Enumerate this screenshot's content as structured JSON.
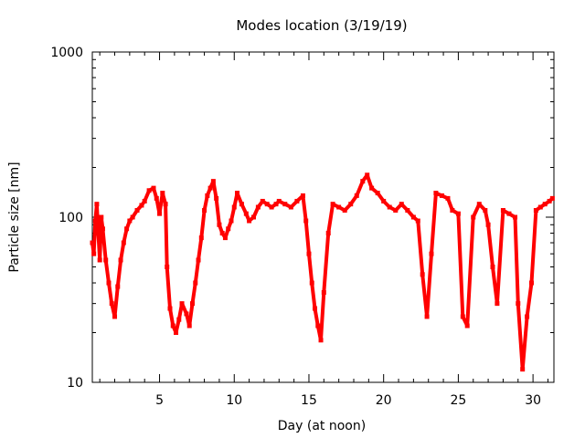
{
  "chart_data": {
    "type": "scatter",
    "title": "Modes location (3/19/19)",
    "xlabel": "Day (at noon)",
    "ylabel": "Particle size [nm]",
    "xlim": [
      0.5,
      31.4
    ],
    "ylim": [
      10,
      1000
    ],
    "yscale": "log",
    "grid": false,
    "legend": "none",
    "marker_color": "#ff0000",
    "x_ticks": [
      5,
      10,
      15,
      20,
      25,
      30
    ],
    "x_tick_labels": [
      "5",
      "10",
      "15",
      "20",
      "25",
      "30"
    ],
    "y_ticks": [
      10,
      100,
      1000
    ],
    "y_tick_labels": [
      "10",
      "100",
      "1000"
    ],
    "series": [
      {
        "values": [
          [
            0.5,
            70
          ],
          [
            0.6,
            60
          ],
          [
            0.7,
            95
          ],
          [
            0.8,
            120
          ],
          [
            0.9,
            80
          ],
          [
            1.0,
            55
          ],
          [
            1.1,
            100
          ],
          [
            1.2,
            85
          ],
          [
            1.4,
            55
          ],
          [
            1.6,
            40
          ],
          [
            1.8,
            30
          ],
          [
            2.0,
            25
          ],
          [
            2.2,
            38
          ],
          [
            2.4,
            55
          ],
          [
            2.6,
            70
          ],
          [
            2.8,
            85
          ],
          [
            3.0,
            95
          ],
          [
            3.2,
            100
          ],
          [
            3.5,
            110
          ],
          [
            3.8,
            118
          ],
          [
            4.0,
            125
          ],
          [
            4.3,
            145
          ],
          [
            4.6,
            150
          ],
          [
            4.8,
            130
          ],
          [
            5.0,
            105
          ],
          [
            5.2,
            140
          ],
          [
            5.4,
            120
          ],
          [
            5.5,
            50
          ],
          [
            5.7,
            28
          ],
          [
            5.9,
            22
          ],
          [
            6.1,
            20
          ],
          [
            6.3,
            24
          ],
          [
            6.5,
            30
          ],
          [
            6.8,
            26
          ],
          [
            7.0,
            22
          ],
          [
            7.2,
            30
          ],
          [
            7.4,
            40
          ],
          [
            7.6,
            55
          ],
          [
            7.8,
            75
          ],
          [
            8.0,
            110
          ],
          [
            8.2,
            135
          ],
          [
            8.4,
            150
          ],
          [
            8.6,
            165
          ],
          [
            8.8,
            130
          ],
          [
            9.0,
            90
          ],
          [
            9.2,
            80
          ],
          [
            9.4,
            75
          ],
          [
            9.6,
            85
          ],
          [
            9.8,
            95
          ],
          [
            10.0,
            115
          ],
          [
            10.2,
            140
          ],
          [
            10.5,
            120
          ],
          [
            10.8,
            105
          ],
          [
            11.0,
            95
          ],
          [
            11.3,
            100
          ],
          [
            11.6,
            115
          ],
          [
            11.9,
            125
          ],
          [
            12.2,
            120
          ],
          [
            12.5,
            115
          ],
          [
            12.8,
            120
          ],
          [
            13.0,
            125
          ],
          [
            13.4,
            120
          ],
          [
            13.8,
            115
          ],
          [
            14.2,
            125
          ],
          [
            14.6,
            135
          ],
          [
            14.8,
            95
          ],
          [
            15.0,
            60
          ],
          [
            15.2,
            40
          ],
          [
            15.4,
            28
          ],
          [
            15.6,
            22
          ],
          [
            15.8,
            18
          ],
          [
            16.0,
            35
          ],
          [
            16.3,
            80
          ],
          [
            16.6,
            120
          ],
          [
            17.0,
            115
          ],
          [
            17.4,
            110
          ],
          [
            17.8,
            120
          ],
          [
            18.2,
            135
          ],
          [
            18.6,
            165
          ],
          [
            18.9,
            180
          ],
          [
            19.2,
            150
          ],
          [
            19.6,
            140
          ],
          [
            20.0,
            125
          ],
          [
            20.4,
            115
          ],
          [
            20.8,
            110
          ],
          [
            21.2,
            120
          ],
          [
            21.6,
            110
          ],
          [
            22.0,
            100
          ],
          [
            22.3,
            95
          ],
          [
            22.6,
            45
          ],
          [
            22.9,
            25
          ],
          [
            23.2,
            60
          ],
          [
            23.5,
            140
          ],
          [
            23.9,
            135
          ],
          [
            24.3,
            130
          ],
          [
            24.6,
            110
          ],
          [
            25.0,
            105
          ],
          [
            25.3,
            25
          ],
          [
            25.6,
            22
          ],
          [
            26.0,
            100
          ],
          [
            26.4,
            120
          ],
          [
            26.8,
            110
          ],
          [
            27.0,
            90
          ],
          [
            27.3,
            50
          ],
          [
            27.6,
            30
          ],
          [
            28.0,
            110
          ],
          [
            28.4,
            105
          ],
          [
            28.8,
            100
          ],
          [
            29.0,
            30
          ],
          [
            29.3,
            12
          ],
          [
            29.6,
            25
          ],
          [
            29.9,
            40
          ],
          [
            30.2,
            110
          ],
          [
            30.5,
            115
          ],
          [
            30.8,
            120
          ],
          [
            31.1,
            125
          ],
          [
            31.3,
            130
          ]
        ]
      }
    ]
  }
}
